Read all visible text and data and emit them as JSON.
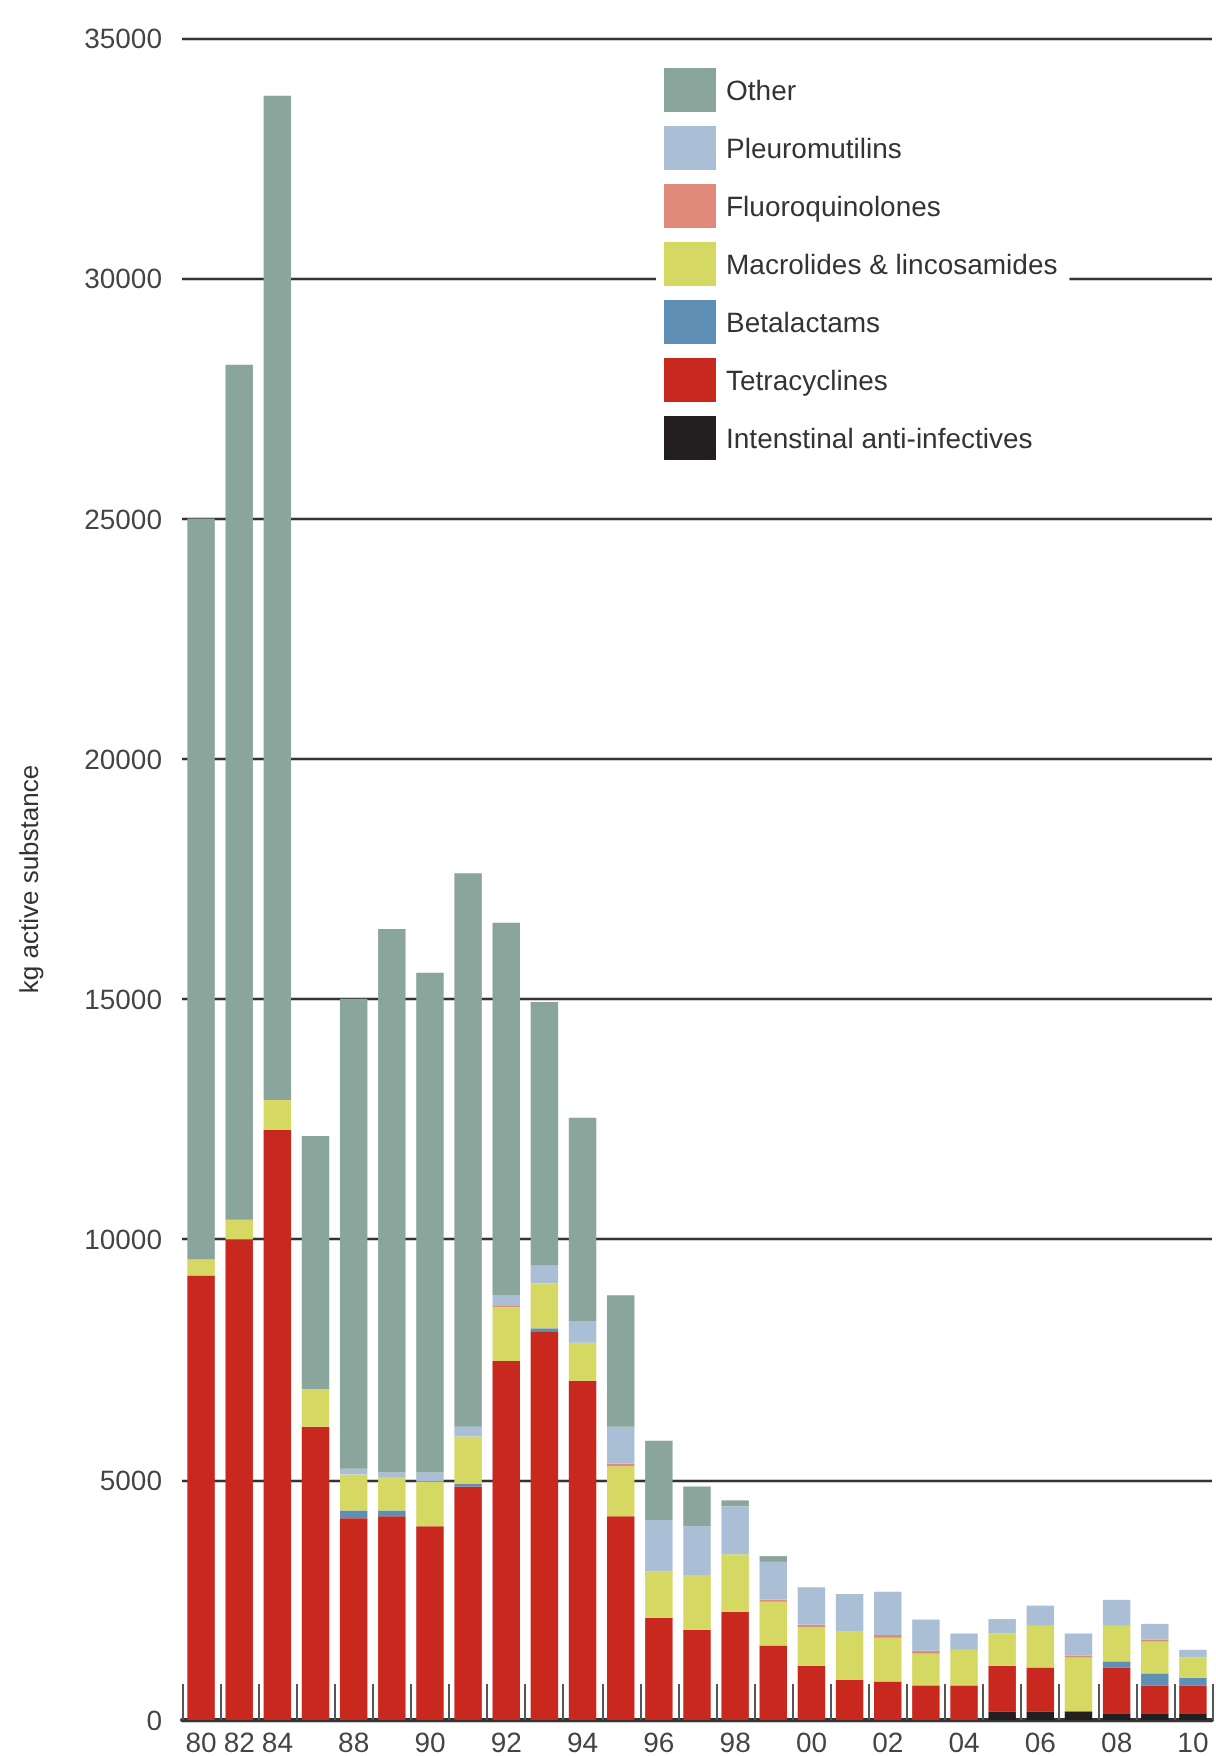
{
  "chart_data": {
    "type": "bar",
    "stacked": true,
    "ylabel": "kg active substance",
    "categories": [
      "80",
      "82",
      "84",
      null,
      "88",
      null,
      "90",
      null,
      "92",
      null,
      "94",
      null,
      "96",
      null,
      "98",
      null,
      "00",
      null,
      "02",
      null,
      "04",
      null,
      "06",
      null,
      "08",
      null,
      "10"
    ],
    "ylim": [
      0,
      35000
    ],
    "yticks": [
      0,
      5000,
      10000,
      15000,
      20000,
      25000,
      30000,
      35000
    ],
    "grid": "y",
    "legend": "top right",
    "series": [
      {
        "name": "Intenstinal anti-infectives",
        "color": "#231f20",
        "values": [
          0,
          0,
          0,
          0,
          0,
          0,
          0,
          0,
          0,
          0,
          0,
          0,
          0,
          0,
          0,
          0,
          0,
          0,
          0,
          0,
          0,
          180,
          180,
          180,
          140,
          140,
          140
        ]
      },
      {
        "name": "Tetracyclines",
        "color": "#c8281e",
        "values": [
          9250,
          10000,
          12280,
          6100,
          4200,
          4240,
          4030,
          4860,
          7470,
          8090,
          7060,
          4240,
          2130,
          1880,
          2250,
          1550,
          1130,
          840,
          800,
          720,
          720,
          950,
          910,
          0,
          950,
          580,
          580
        ]
      },
      {
        "name": "Betalactams",
        "color": "#5f8fb5",
        "values": [
          0,
          0,
          0,
          0,
          160,
          120,
          0,
          60,
          0,
          60,
          0,
          0,
          0,
          0,
          0,
          0,
          0,
          0,
          0,
          0,
          0,
          0,
          0,
          0,
          130,
          250,
          160
        ]
      },
      {
        "name": "Macrolides & lincosamides",
        "color": "#d5d862",
        "values": [
          340,
          410,
          620,
          790,
          750,
          680,
          930,
          980,
          1120,
          940,
          790,
          1040,
          960,
          1120,
          1200,
          910,
          800,
          1010,
          910,
          660,
          740,
          670,
          870,
          1120,
          740,
          660,
          420
        ]
      },
      {
        "name": "Fluoroquinolones",
        "color": "#e08a7c",
        "values": [
          0,
          0,
          0,
          0,
          0,
          0,
          0,
          0,
          40,
          0,
          0,
          50,
          0,
          0,
          0,
          40,
          50,
          0,
          60,
          60,
          0,
          0,
          0,
          40,
          0,
          40,
          0
        ]
      },
      {
        "name": "Pleuromutilins",
        "color": "#aabfd6",
        "values": [
          0,
          0,
          0,
          0,
          120,
          110,
          190,
          200,
          210,
          370,
          450,
          770,
          1070,
          1030,
          1000,
          790,
          780,
          770,
          900,
          650,
          340,
          300,
          420,
          460,
          540,
          330,
          160
        ]
      },
      {
        "name": "Other",
        "color": "#8aa69c",
        "values": [
          15410,
          17790,
          20900,
          5260,
          9780,
          11310,
          10400,
          11520,
          7750,
          5480,
          4230,
          2740,
          1650,
          830,
          120,
          120,
          0,
          0,
          0,
          0,
          0,
          0,
          0,
          0,
          0,
          0,
          0
        ]
      }
    ]
  }
}
